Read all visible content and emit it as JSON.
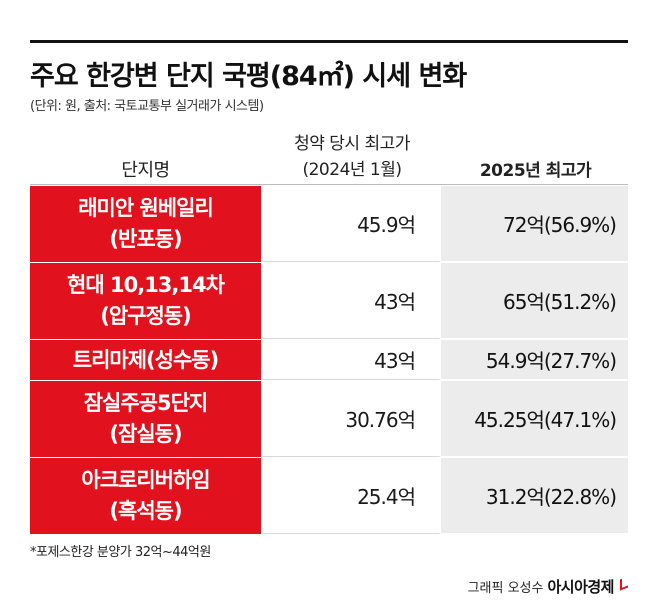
{
  "title": "주요 한강변 단지 국평(84㎡) 시세 변화",
  "subtitle": "(단위: 원, 출처: 국토교통부 실거래가 시스템)",
  "columns": {
    "name": "단지명",
    "subscription_line1": "청약 당시 최고가",
    "subscription_line2": "(2024년 1월)",
    "y2025": "2025년 최고가"
  },
  "rows": [
    {
      "name1": "래미안 원베일리",
      "name2": "(반포동)",
      "subscription": "45.9억",
      "y2025": "72억(56.9%)"
    },
    {
      "name1": "현대 10,13,14차",
      "name2": "(압구정동)",
      "subscription": "43억",
      "y2025": "65억(51.2%)"
    },
    {
      "name1": "트리마제(성수동)",
      "name2": "",
      "subscription": "43억",
      "y2025": "54.9억(27.7%)"
    },
    {
      "name1": "잠실주공5단지",
      "name2": "(잠실동)",
      "subscription": "30.76억",
      "y2025": "45.25억(47.1%)"
    },
    {
      "name1": "아크로리버하임",
      "name2": "(흑석동)",
      "subscription": "25.4억",
      "y2025": "31.2억(22.8%)"
    }
  ],
  "footnote": "*포제스한강 분양가 32억~44억원",
  "credit": {
    "prefix": "그래픽 오성수",
    "brand": "아시아경제"
  },
  "colors": {
    "accent_red": "#e1111d",
    "highlight_gray": "#ececec"
  }
}
